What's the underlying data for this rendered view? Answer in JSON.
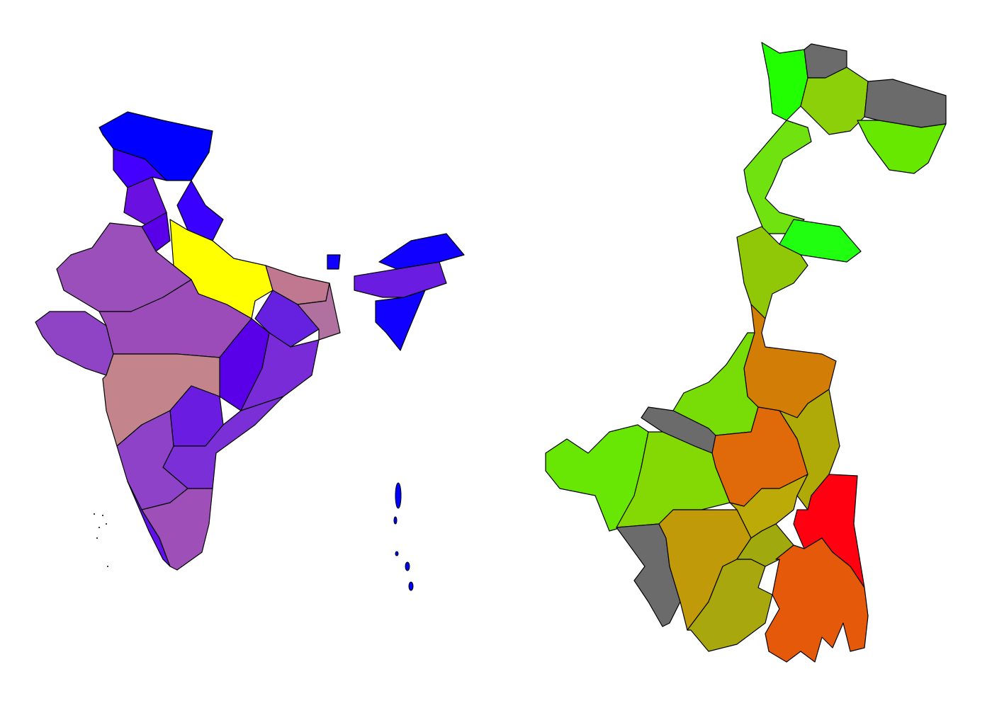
{
  "maps": [
    {
      "id": "india",
      "stroke": "#000000",
      "regions": [
        {
          "fill": "#0000ff"
        },
        {
          "fill": "#4400ff"
        },
        {
          "fill": "#6a10e0"
        },
        {
          "fill": "#3a00ff"
        },
        {
          "fill": "#5a00e8"
        },
        {
          "fill": "#ffff00"
        },
        {
          "fill": "#9b4fba"
        },
        {
          "fill": "#8e44c4"
        },
        {
          "fill": "#9c4cb8"
        },
        {
          "fill": "#c07890"
        },
        {
          "fill": "#6520e0"
        },
        {
          "fill": "#b070a0"
        },
        {
          "fill": "#5a00e8"
        },
        {
          "fill": "#7a2bd8"
        },
        {
          "fill": "#c4848c"
        },
        {
          "fill": "#6a1de0"
        },
        {
          "fill": "#7b2fd6"
        },
        {
          "fill": "#8d42c8"
        },
        {
          "fill": "#6010e8"
        },
        {
          "fill": "#9e50b8"
        },
        {
          "fill": "#6a1de0"
        },
        {
          "fill": "#1000ff"
        },
        {
          "fill": "#1000ff"
        },
        {
          "fill": "#1000ff"
        }
      ],
      "islands_fill": "#0000ff"
    },
    {
      "id": "west-bengal",
      "stroke": "#000000",
      "regions": [
        {
          "fill": "#22ff00"
        },
        {
          "fill": "#6b6b6b"
        },
        {
          "fill": "#8cd00a"
        },
        {
          "fill": "#6b6b6b"
        },
        {
          "fill": "#66e800"
        },
        {
          "fill": "#70e210"
        },
        {
          "fill": "#20ff10"
        },
        {
          "fill": "#90c808"
        },
        {
          "fill": "#d27e06"
        },
        {
          "fill": "#78dc06"
        },
        {
          "fill": "#6b6b6b"
        },
        {
          "fill": "#b0aa08"
        },
        {
          "fill": "#e06a0a"
        },
        {
          "fill": "#68e604"
        },
        {
          "fill": "#84d804"
        },
        {
          "fill": "#bcaa08"
        },
        {
          "fill": "#ff0010"
        },
        {
          "fill": "#6b6b6b"
        },
        {
          "fill": "#c09a08"
        },
        {
          "fill": "#a0aa0e"
        },
        {
          "fill": "#a8a80e"
        },
        {
          "fill": "#e45a0a"
        }
      ]
    }
  ]
}
